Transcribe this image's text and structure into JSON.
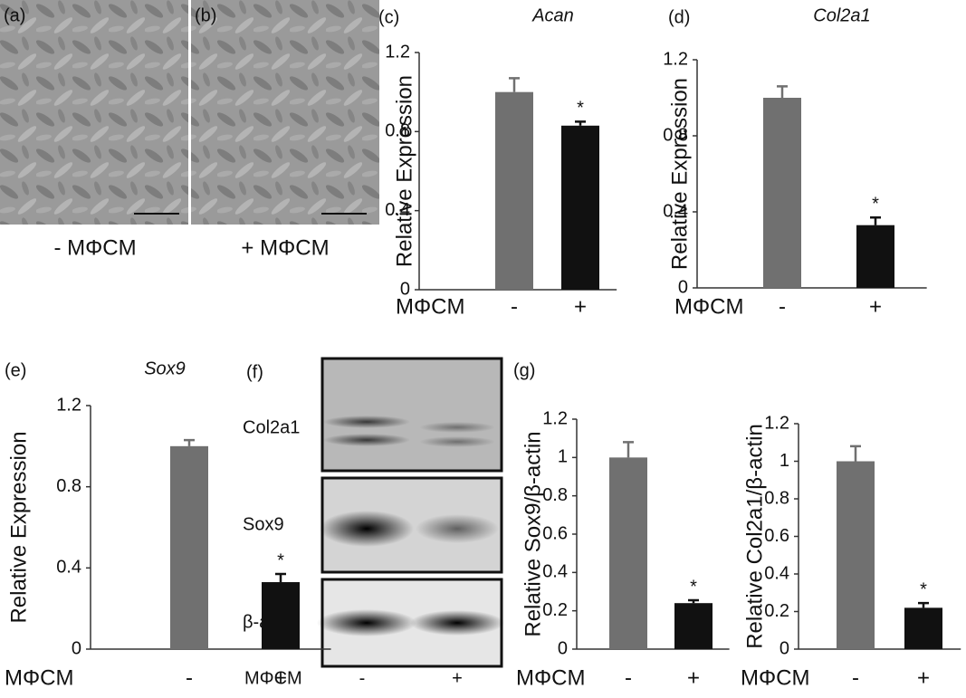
{
  "micrographs": [
    {
      "label": "(a)",
      "caption": "- MΦCM"
    },
    {
      "label": "(b)",
      "caption": "+ MΦCM"
    }
  ],
  "western_blot": {
    "label": "(f)",
    "bands": [
      "Col2a1",
      "Sox9",
      "β-actin"
    ],
    "xlabel": "MΦCM",
    "lanes": [
      "-",
      "+"
    ]
  },
  "chart_data": [
    {
      "type": "bar",
      "panel_label": "(c)",
      "title": "Acan",
      "ylabel": "Relative Expression",
      "xlabel": "MΦCM",
      "categories": [
        "-",
        "+"
      ],
      "values": [
        1.0,
        0.83
      ],
      "errors": [
        0.07,
        0.02
      ],
      "colors": [
        "#707070",
        "#111111"
      ],
      "annotation": {
        "category": "+",
        "text": "*"
      },
      "ylim": [
        0,
        1.2
      ],
      "yticks": [
        0,
        0.4,
        0.8,
        1.2
      ]
    },
    {
      "type": "bar",
      "panel_label": "(d)",
      "title": "Col2a1",
      "ylabel": "Relative Expression",
      "xlabel": "MΦCM",
      "categories": [
        "-",
        "+"
      ],
      "values": [
        1.0,
        0.33
      ],
      "errors": [
        0.06,
        0.04
      ],
      "colors": [
        "#707070",
        "#111111"
      ],
      "annotation": {
        "category": "+",
        "text": "*"
      },
      "ylim": [
        0,
        1.2
      ],
      "yticks": [
        0,
        0.4,
        0.8,
        1.2
      ]
    },
    {
      "type": "bar",
      "panel_label": "(e)",
      "title": "Sox9",
      "ylabel": "Relative Expression",
      "xlabel": "MΦCM",
      "categories": [
        "-",
        "+"
      ],
      "values": [
        1.0,
        0.33
      ],
      "errors": [
        0.03,
        0.04
      ],
      "colors": [
        "#707070",
        "#111111"
      ],
      "annotation": {
        "category": "+",
        "text": "*"
      },
      "ylim": [
        0,
        1.2
      ],
      "yticks": [
        0,
        0.4,
        0.8,
        1.2
      ]
    },
    {
      "type": "bar",
      "panel_label": "(g)",
      "ylabel": "Relative Sox9/β-actin",
      "xlabel": "MΦCM",
      "categories": [
        "-",
        "+"
      ],
      "values": [
        1.0,
        0.24
      ],
      "errors": [
        0.08,
        0.015
      ],
      "colors": [
        "#707070",
        "#111111"
      ],
      "annotation": {
        "category": "+",
        "text": "*"
      },
      "ylim": [
        0,
        1.2
      ],
      "yticks": [
        0,
        0.2,
        0.4,
        0.6,
        0.8,
        1,
        1.2
      ]
    },
    {
      "type": "bar",
      "ylabel": "Relative Col2a1/β-actin",
      "xlabel": "MΦCM",
      "categories": [
        "-",
        "+"
      ],
      "values": [
        1.0,
        0.22
      ],
      "errors": [
        0.08,
        0.025
      ],
      "colors": [
        "#707070",
        "#111111"
      ],
      "annotation": {
        "category": "+",
        "text": "*"
      },
      "ylim": [
        0,
        1.2
      ],
      "yticks": [
        0,
        0.2,
        0.4,
        0.6,
        0.8,
        1,
        1.2
      ]
    }
  ]
}
